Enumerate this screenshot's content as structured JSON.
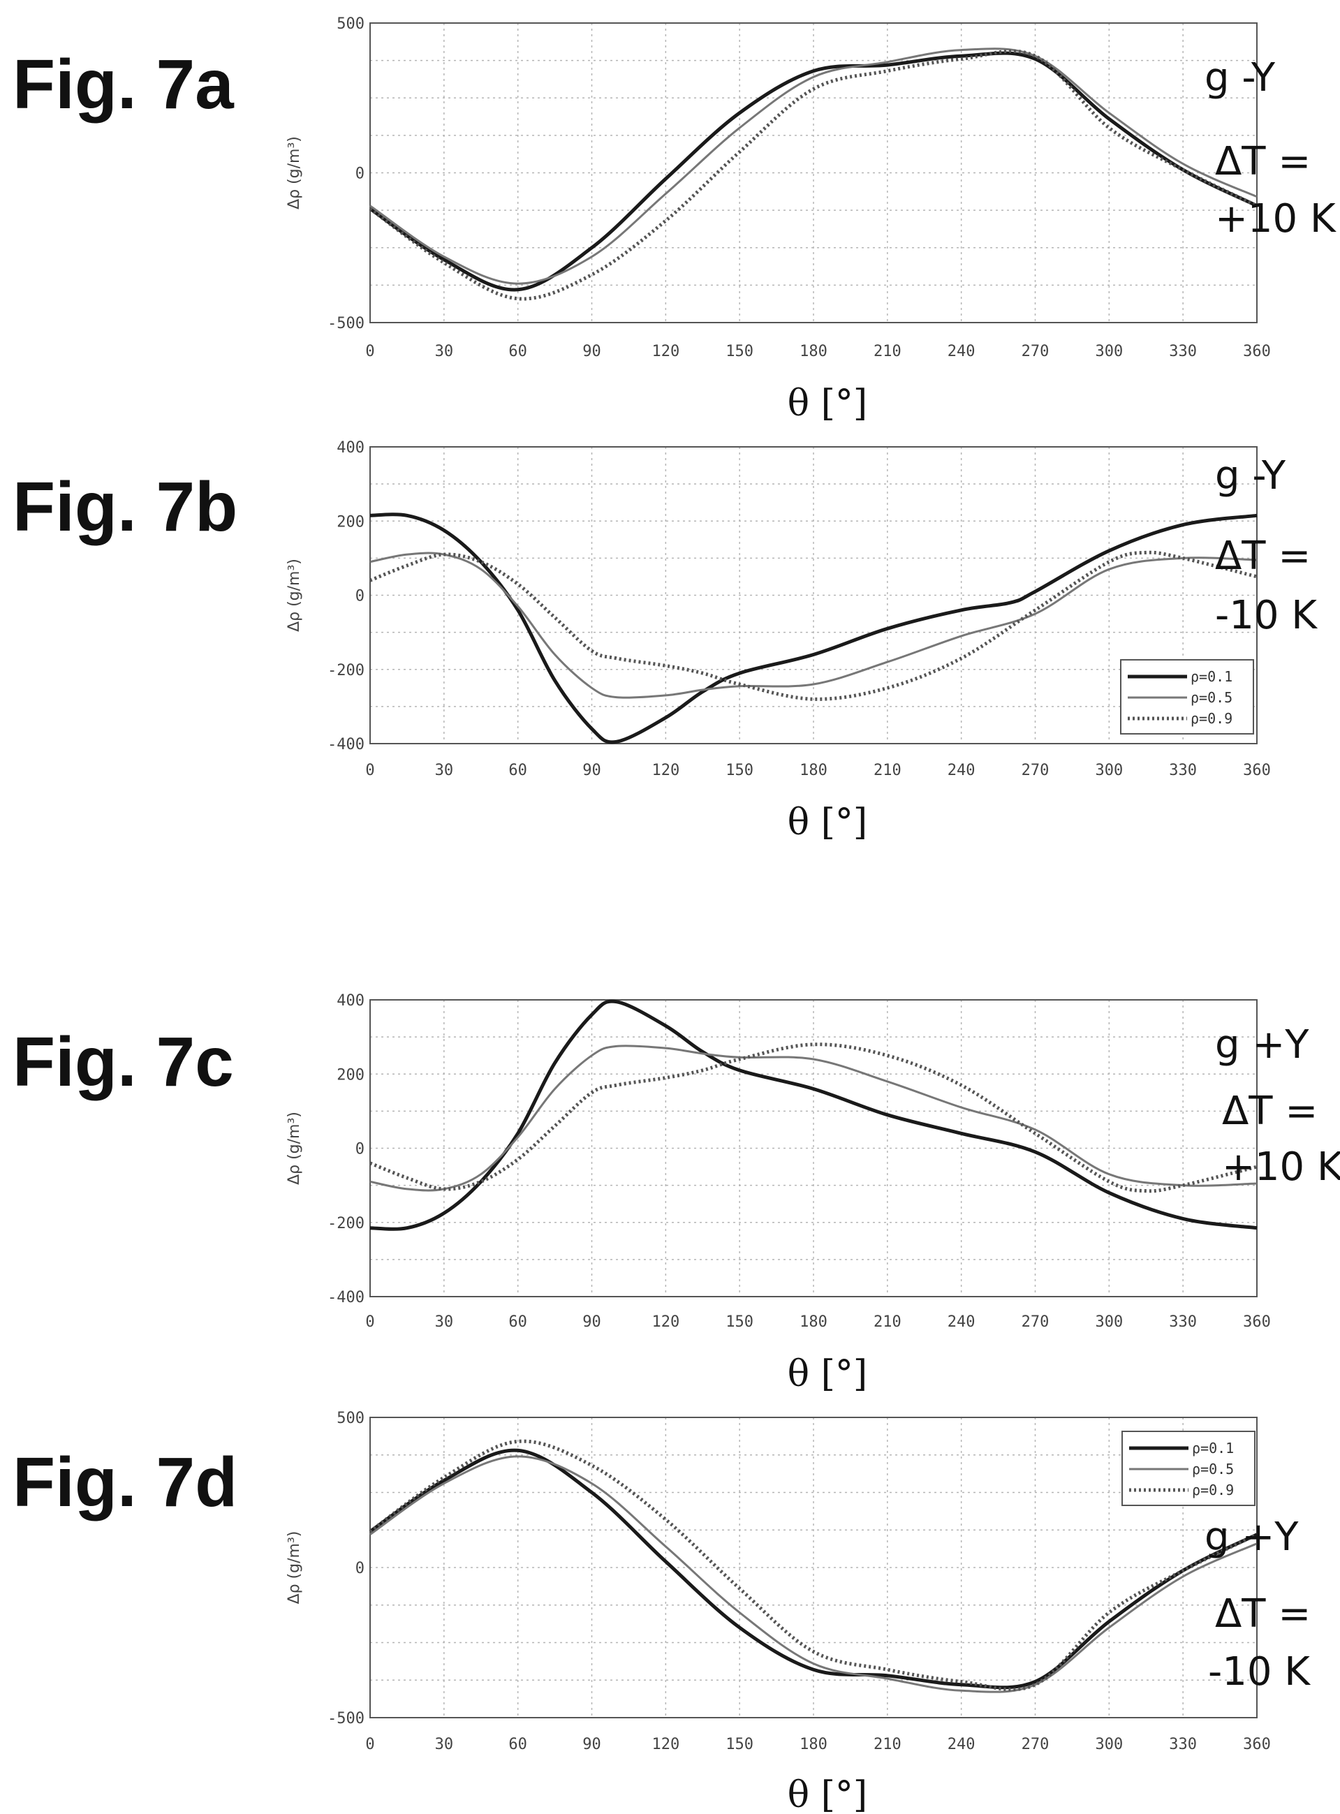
{
  "chart_data": [
    {
      "type": "line",
      "fig_label": "Fig. 7a",
      "notes": [
        "g -Y",
        "ΔT =",
        "+10 K"
      ],
      "xlabel": "θ [°]",
      "ylabel": "Δρ (g/m³)",
      "xlim": [
        0,
        360
      ],
      "ylim": [
        -500,
        500
      ],
      "xticks": [
        0,
        30,
        60,
        90,
        120,
        150,
        180,
        210,
        240,
        270,
        300,
        330,
        360
      ],
      "yticks": [
        -500,
        0,
        500
      ],
      "grid": true,
      "legend": null,
      "series": [
        {
          "style": "solid",
          "x": [
            0,
            30,
            60,
            90,
            120,
            150,
            180,
            210,
            240,
            270,
            300,
            330,
            360
          ],
          "y": [
            -120,
            -290,
            -390,
            -250,
            -20,
            200,
            340,
            360,
            390,
            380,
            180,
            10,
            -110
          ]
        },
        {
          "style": "thin",
          "x": [
            0,
            30,
            60,
            90,
            120,
            150,
            180,
            210,
            240,
            270,
            300,
            330,
            360
          ],
          "y": [
            -110,
            -280,
            -370,
            -280,
            -70,
            150,
            320,
            370,
            410,
            390,
            200,
            30,
            -80
          ]
        },
        {
          "style": "dotted",
          "x": [
            0,
            30,
            60,
            90,
            120,
            150,
            180,
            210,
            240,
            270,
            300,
            330,
            360
          ],
          "y": [
            -120,
            -300,
            -420,
            -340,
            -160,
            70,
            280,
            340,
            380,
            390,
            150,
            10,
            -110
          ]
        }
      ]
    },
    {
      "type": "line",
      "fig_label": "Fig. 7b",
      "notes": [
        "g -Y",
        "ΔT =",
        "-10 K"
      ],
      "xlabel": "θ [°]",
      "ylabel": "Δρ (g/m³)",
      "xlim": [
        0,
        360
      ],
      "ylim": [
        -400,
        400
      ],
      "xticks": [
        0,
        30,
        60,
        90,
        120,
        150,
        180,
        210,
        240,
        270,
        300,
        330,
        360
      ],
      "yticks": [
        -400,
        -200,
        0,
        200,
        400
      ],
      "grid": true,
      "legend": {
        "position": "right",
        "entries": [
          "ρ=0.1",
          "ρ=0.5",
          "ρ=0.9"
        ]
      },
      "series": [
        {
          "name": "ρ=0.1",
          "style": "solid",
          "x": [
            0,
            15,
            30,
            45,
            60,
            75,
            90,
            100,
            120,
            135,
            150,
            180,
            210,
            240,
            260,
            270,
            300,
            330,
            360
          ],
          "y": [
            215,
            215,
            175,
            90,
            -40,
            -230,
            -360,
            -395,
            -330,
            -260,
            -210,
            -160,
            -90,
            -40,
            -20,
            10,
            120,
            190,
            215
          ]
        },
        {
          "name": "ρ=0.5",
          "style": "thin",
          "x": [
            0,
            15,
            30,
            45,
            60,
            75,
            90,
            100,
            120,
            135,
            150,
            180,
            210,
            240,
            270,
            300,
            330,
            360
          ],
          "y": [
            90,
            110,
            110,
            70,
            -30,
            -160,
            -250,
            -275,
            -270,
            -255,
            -245,
            -240,
            -180,
            -110,
            -50,
            70,
            100,
            95
          ]
        },
        {
          "name": "ρ=0.9",
          "style": "dotted",
          "x": [
            0,
            15,
            30,
            45,
            60,
            75,
            90,
            100,
            120,
            135,
            150,
            180,
            210,
            240,
            270,
            300,
            315,
            330,
            360
          ],
          "y": [
            40,
            80,
            110,
            90,
            30,
            -60,
            -150,
            -170,
            -190,
            -210,
            -240,
            -280,
            -250,
            -170,
            -40,
            90,
            115,
            100,
            50
          ]
        }
      ]
    },
    {
      "type": "line",
      "fig_label": "Fig. 7c",
      "notes": [
        "g +Y",
        "ΔT =",
        "+10 K"
      ],
      "xlabel": "θ [°]",
      "ylabel": "Δρ (g/m³)",
      "xlim": [
        0,
        360
      ],
      "ylim": [
        -400,
        400
      ],
      "xticks": [
        0,
        30,
        60,
        90,
        120,
        150,
        180,
        210,
        240,
        270,
        300,
        330,
        360
      ],
      "yticks": [
        -400,
        -200,
        0,
        200,
        400
      ],
      "grid": true,
      "legend": null,
      "series": [
        {
          "style": "solid",
          "x": [
            0,
            15,
            30,
            45,
            60,
            75,
            90,
            100,
            120,
            135,
            150,
            180,
            210,
            240,
            270,
            300,
            330,
            360
          ],
          "y": [
            -215,
            -215,
            -175,
            -90,
            40,
            230,
            360,
            395,
            330,
            260,
            210,
            160,
            90,
            40,
            -10,
            -120,
            -190,
            -215
          ]
        },
        {
          "style": "thin",
          "x": [
            0,
            15,
            30,
            45,
            60,
            75,
            90,
            100,
            120,
            135,
            150,
            180,
            210,
            240,
            270,
            300,
            330,
            360
          ],
          "y": [
            -90,
            -110,
            -110,
            -70,
            30,
            160,
            250,
            275,
            270,
            255,
            245,
            240,
            180,
            110,
            50,
            -70,
            -100,
            -95
          ]
        },
        {
          "style": "dotted",
          "x": [
            0,
            15,
            30,
            45,
            60,
            75,
            90,
            100,
            120,
            135,
            150,
            180,
            210,
            240,
            270,
            300,
            315,
            330,
            360
          ],
          "y": [
            -40,
            -80,
            -110,
            -90,
            -30,
            60,
            150,
            170,
            190,
            210,
            240,
            280,
            250,
            170,
            40,
            -90,
            -115,
            -100,
            -50
          ]
        }
      ]
    },
    {
      "type": "line",
      "fig_label": "Fig. 7d",
      "notes": [
        "g +Y",
        "ΔT =",
        "-10 K"
      ],
      "xlabel": "θ [°]",
      "ylabel": "Δρ (g/m³)",
      "xlim": [
        0,
        360
      ],
      "ylim": [
        -500,
        500
      ],
      "xticks": [
        0,
        30,
        60,
        90,
        120,
        150,
        180,
        210,
        240,
        270,
        300,
        330,
        360
      ],
      "yticks": [
        -500,
        0,
        500
      ],
      "grid": true,
      "legend": {
        "position": "top-right",
        "entries": [
          "ρ=0.1",
          "ρ=0.5",
          "ρ=0.9"
        ]
      },
      "series": [
        {
          "name": "ρ=0.1",
          "style": "solid",
          "x": [
            0,
            30,
            60,
            90,
            120,
            150,
            180,
            210,
            240,
            270,
            300,
            330,
            360
          ],
          "y": [
            120,
            290,
            390,
            250,
            20,
            -200,
            -340,
            -360,
            -390,
            -380,
            -180,
            -10,
            110
          ]
        },
        {
          "name": "ρ=0.5",
          "style": "thin",
          "x": [
            0,
            30,
            60,
            90,
            120,
            150,
            180,
            210,
            240,
            270,
            300,
            330,
            360
          ],
          "y": [
            110,
            280,
            370,
            280,
            70,
            -150,
            -320,
            -370,
            -410,
            -390,
            -200,
            -30,
            80
          ]
        },
        {
          "name": "ρ=0.9",
          "style": "dotted",
          "x": [
            0,
            30,
            60,
            90,
            120,
            150,
            180,
            210,
            240,
            270,
            300,
            330,
            360
          ],
          "y": [
            120,
            300,
            420,
            340,
            160,
            -70,
            -280,
            -340,
            -380,
            -390,
            -150,
            -10,
            110
          ]
        }
      ]
    }
  ],
  "colors": {
    "solid": "#1a1a1a",
    "thin": "#777777",
    "dotted": "#555555",
    "grid": "#b5b5b5"
  }
}
